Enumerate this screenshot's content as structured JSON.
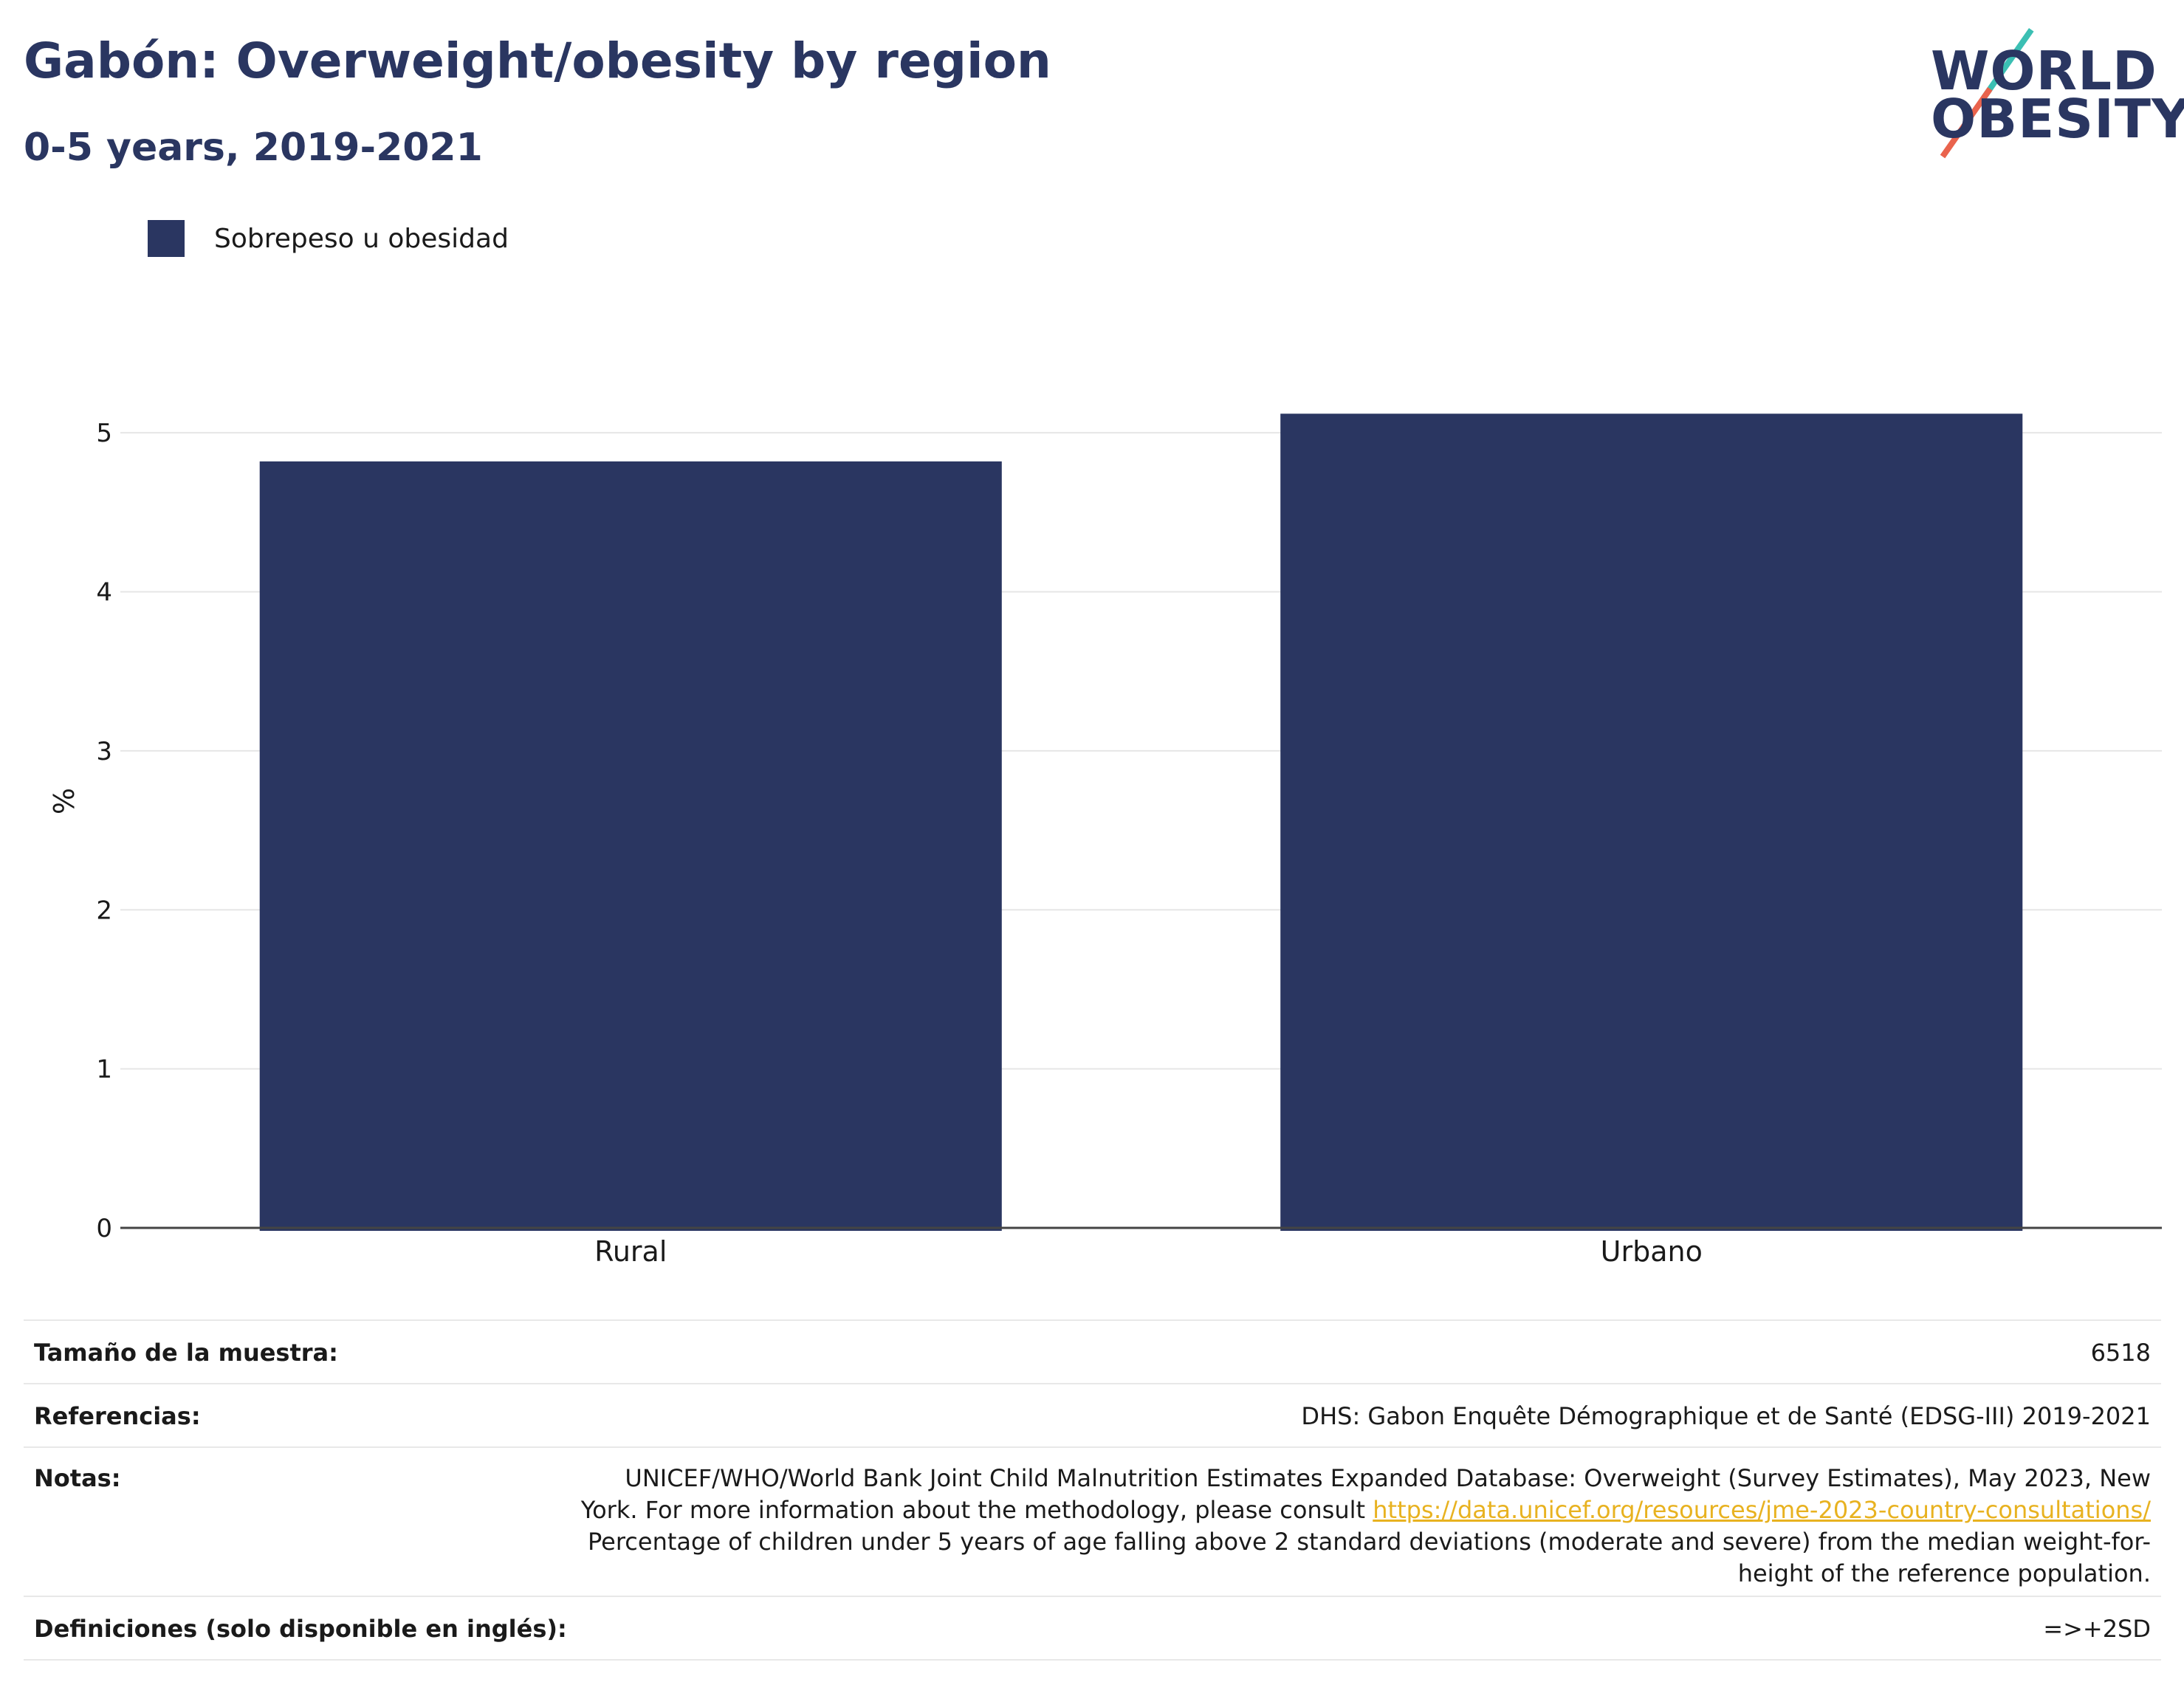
{
  "header": {
    "title": "Gabón: Overweight/obesity by region",
    "subtitle": "0-5 years, 2019-2021"
  },
  "logo": {
    "line1": "WORLD",
    "line2": "OBESITY"
  },
  "colors": {
    "bar": "#2a3661",
    "accent_teal": "#3bbfb3",
    "accent_red": "#e9634d",
    "link": "#e8b220"
  },
  "chart_data": {
    "type": "bar",
    "categories": [
      "Rural",
      "Urbano"
    ],
    "series": [
      {
        "name": "Sobrepeso u obesidad",
        "values": [
          4.82,
          5.12
        ]
      }
    ],
    "ylabel": "%",
    "ylim": [
      0,
      5.4
    ],
    "yticks": [
      0,
      1,
      2,
      3,
      4,
      5
    ],
    "grid": true,
    "legend": "top-left"
  },
  "meta": {
    "sample_label": "Tamaño de la muestra:",
    "sample_value": "6518",
    "refs_label": "Referencias:",
    "refs_value": "DHS: Gabon Enquête Démographique et de Santé (EDSG-III) 2019-2021",
    "notes_label": "Notas:",
    "notes_line1": "UNICEF/WHO/World Bank Joint Child Malnutrition Estimates Expanded Database: Overweight (Survey Estimates), May 2023, New",
    "notes_line2_prefix": "York. For more information about the methodology, please consult ",
    "notes_link": "https://data.unicef.org/resources/jme-2023-country-consultations/",
    "notes_line3": "Percentage of children under 5 years of age falling above 2 standard deviations (moderate and severe) from the median weight-for-",
    "notes_line4": "height of the reference population.",
    "defs_label": "Definiciones (solo disponible en inglés):",
    "defs_value": "=>+2SD"
  }
}
